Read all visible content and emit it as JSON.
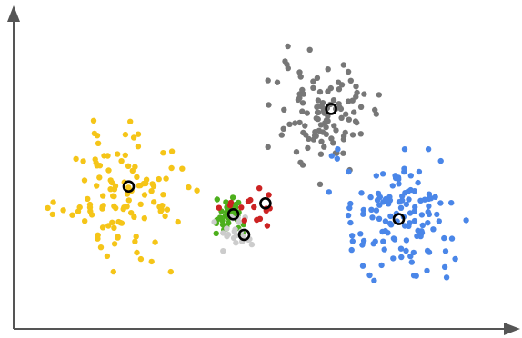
{
  "chart_data": {
    "type": "scatter",
    "title": "",
    "xlabel": "",
    "ylabel": "",
    "xlim": [
      0,
      100
    ],
    "ylim": [
      0,
      100
    ],
    "grid": false,
    "legend": "none",
    "axes_style": "arrows",
    "series": [
      {
        "cluster": "yellow",
        "color": "#f5c518",
        "center": [
          21,
          42
        ],
        "spread": [
          6.4,
          10.5
        ],
        "count": 115
      },
      {
        "cluster": "green",
        "color": "#4caf1c",
        "center": [
          42.5,
          35.5
        ],
        "spread": [
          2.1,
          3.2
        ],
        "count": 40
      },
      {
        "cluster": "light-gray",
        "color": "#cccccc",
        "center": [
          44.5,
          29
        ],
        "spread": [
          2.3,
          3.5
        ],
        "count": 22
      },
      {
        "cluster": "red",
        "color": "#cc2222",
        "center": [
          47.5,
          38
        ],
        "spread": [
          3.0,
          3.0
        ],
        "count": 16
      },
      {
        "cluster": "dark-gray",
        "color": "#777777",
        "center": [
          61.5,
          68.5
        ],
        "spread": [
          4.7,
          9.5
        ],
        "count": 110
      },
      {
        "cluster": "blue",
        "color": "#4a86e8",
        "center": [
          76.5,
          34.5
        ],
        "spread": [
          5.8,
          9.5
        ],
        "count": 130
      }
    ],
    "centroids": [
      {
        "cluster": "yellow",
        "x": 22,
        "y": 45
      },
      {
        "cluster": "green",
        "x": 43.2,
        "y": 35.8
      },
      {
        "cluster": "red",
        "x": 49.7,
        "y": 39.4
      },
      {
        "cluster": "light-gray",
        "x": 45.4,
        "y": 29
      },
      {
        "cluster": "dark-gray",
        "x": 63,
        "y": 70.6
      },
      {
        "cluster": "blue",
        "x": 76.7,
        "y": 34.2
      }
    ],
    "colors": {
      "axis": "#555555",
      "centroid_stroke": "#000000"
    }
  }
}
